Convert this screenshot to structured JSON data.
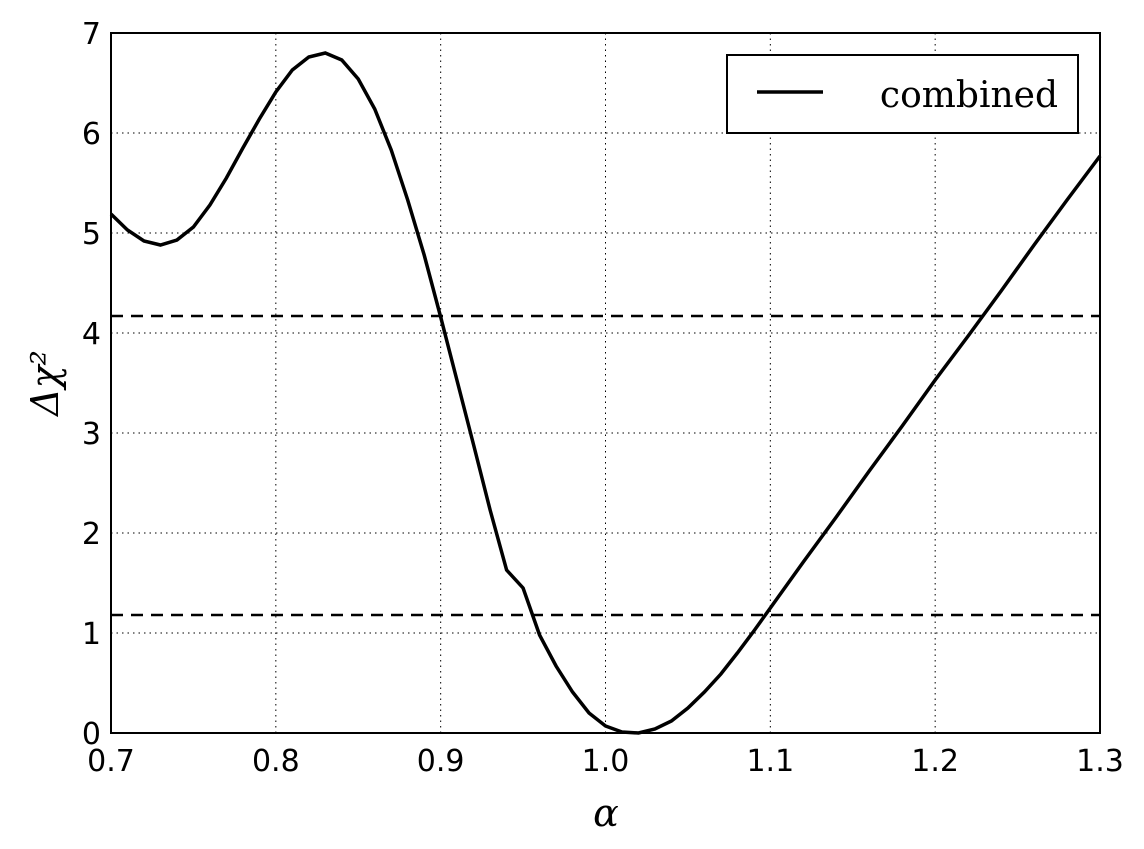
{
  "chart_data": {
    "type": "line",
    "xlabel": "α",
    "ylabel": "Δχ²",
    "x": [
      0.7,
      0.71,
      0.72,
      0.73,
      0.74,
      0.75,
      0.76,
      0.77,
      0.78,
      0.79,
      0.8,
      0.81,
      0.82,
      0.83,
      0.84,
      0.85,
      0.86,
      0.87,
      0.88,
      0.89,
      0.9,
      0.91,
      0.92,
      0.93,
      0.94,
      0.95,
      0.96,
      0.97,
      0.98,
      0.99,
      1.0,
      1.01,
      1.02,
      1.03,
      1.04,
      1.05,
      1.06,
      1.07,
      1.08,
      1.09,
      1.1,
      1.12,
      1.14,
      1.16,
      1.18,
      1.2,
      1.22,
      1.24,
      1.26,
      1.28,
      1.3
    ],
    "series": [
      {
        "name": "combined",
        "color": "#000000",
        "values": [
          5.19,
          5.03,
          4.92,
          4.88,
          4.93,
          5.06,
          5.28,
          5.55,
          5.85,
          6.14,
          6.41,
          6.63,
          6.76,
          6.8,
          6.73,
          6.54,
          6.24,
          5.83,
          5.33,
          4.78,
          4.16,
          3.52,
          2.88,
          2.23,
          1.63,
          1.45,
          0.98,
          0.67,
          0.41,
          0.2,
          0.07,
          0.01,
          0.0,
          0.04,
          0.12,
          0.25,
          0.41,
          0.59,
          0.8,
          1.02,
          1.25,
          1.71,
          2.16,
          2.62,
          3.07,
          3.53,
          3.97,
          4.42,
          4.88,
          5.33,
          5.77
        ]
      }
    ],
    "hlines": [
      4.17,
      1.18
    ],
    "xlim": [
      0.7,
      1.3
    ],
    "ylim": [
      0,
      7
    ],
    "xticks": [
      0.7,
      0.8,
      0.9,
      {
        "value": 1,
        "label": "1.0"
      },
      1.1,
      1.2,
      1.3
    ],
    "yticks": [
      0,
      1,
      2,
      3,
      4,
      5,
      6,
      7
    ],
    "grid": true,
    "legend": "upper right"
  }
}
